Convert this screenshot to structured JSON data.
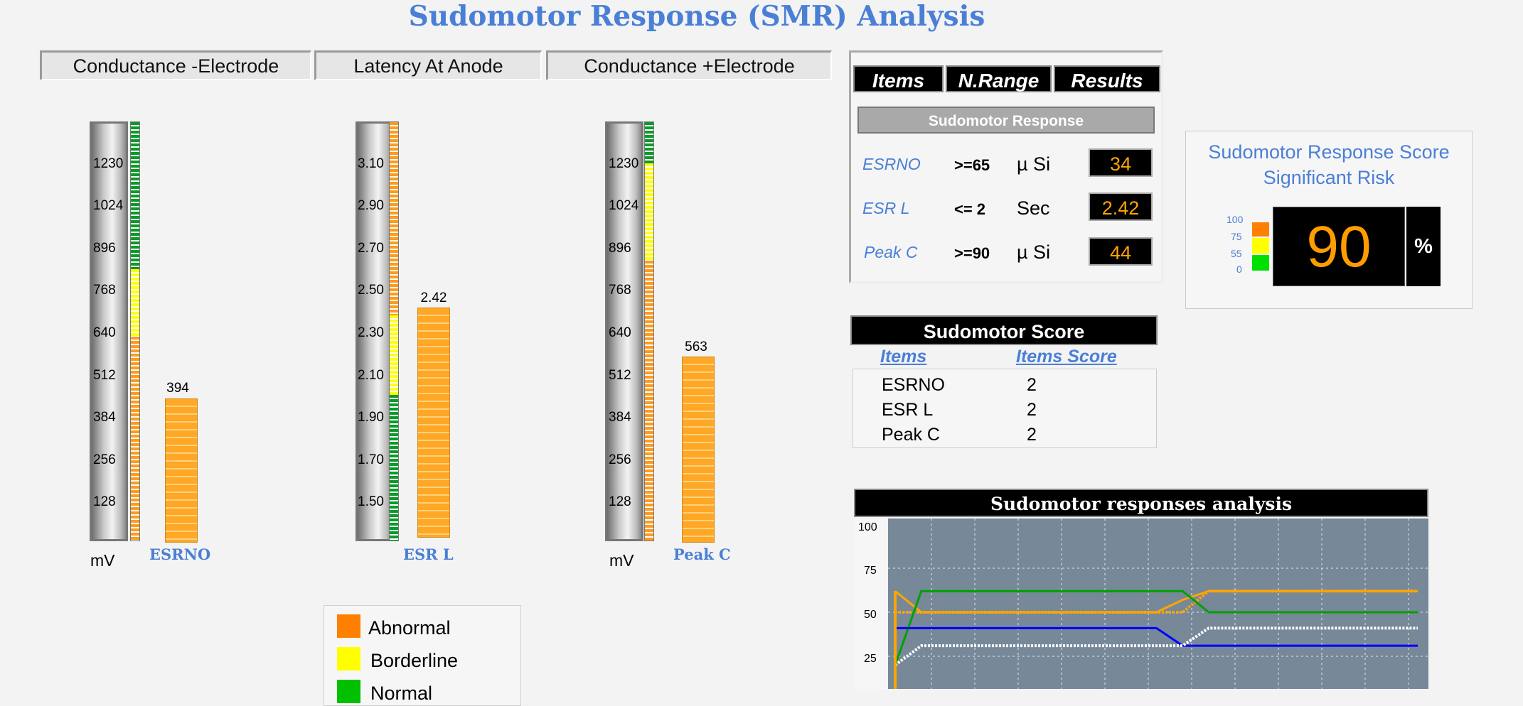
{
  "title": "Sudomotor Response (SMR) Analysis",
  "columns": [
    {
      "label": "Conductance -Electrode"
    },
    {
      "label": "Latency At Anode"
    },
    {
      "label": "Conductance +Electrode"
    }
  ],
  "gauges": [
    {
      "ticks": [
        "1230",
        "1024",
        "896",
        "768",
        "640",
        "512",
        "384",
        "256",
        "128"
      ],
      "value_label": "394",
      "value": 394,
      "unit": "mV",
      "name": "ESRNO"
    },
    {
      "ticks": [
        "3.10",
        "2.90",
        "2.70",
        "2.50",
        "2.30",
        "2.10",
        "1.90",
        "1.70",
        "1.50"
      ],
      "value_label": "2.42",
      "value": 2.42,
      "unit": "",
      "name": "ESR L"
    },
    {
      "ticks": [
        "1230",
        "1024",
        "896",
        "768",
        "640",
        "512",
        "384",
        "256",
        "128"
      ],
      "value_label": "563",
      "value": 563,
      "unit": "mV",
      "name": "Peak C"
    }
  ],
  "legend": [
    {
      "label": "Abnormal",
      "color": "#ff8000"
    },
    {
      "label": "Borderline",
      "color": "#ffff00"
    },
    {
      "label": "Normal",
      "color": "#00c000"
    }
  ],
  "results_panel": {
    "headers": [
      "Items",
      "N.Range",
      "Results"
    ],
    "section": "Sudomotor Response",
    "rows": [
      {
        "name": "ESRNO",
        "range": ">=65",
        "unit": "µ Si",
        "result": "34"
      },
      {
        "name": "ESR L",
        "range": "<= 2",
        "unit": "Sec",
        "result": "2.42"
      },
      {
        "name": "Peak C",
        "range": ">=90",
        "unit": "µ Si",
        "result": "44"
      }
    ]
  },
  "score_panel": {
    "title_line1": "Sudomotor Response Score",
    "title_line2": "Significant Risk",
    "scale": [
      "100",
      "75",
      "55",
      "0"
    ],
    "score": "90",
    "unit": "%"
  },
  "sudomotor_score": {
    "title": "Sudomotor Score",
    "col_items": "Items",
    "col_score": "Items Score",
    "rows": [
      {
        "item": "ESRNO",
        "score": "2"
      },
      {
        "item": "ESR L",
        "score": "2"
      },
      {
        "item": "Peak C",
        "score": "2"
      }
    ]
  },
  "chart": {
    "title": "Sudomotor responses analysis",
    "y_ticks": [
      "100",
      "75",
      "50",
      "25"
    ]
  },
  "chart_data": {
    "type": "line",
    "title": "Sudomotor responses analysis",
    "xlabel": "",
    "ylabel": "",
    "ylim": [
      0,
      100
    ],
    "grid": true,
    "series": [
      {
        "color": "#ffa500",
        "x": [
          0,
          1,
          2,
          3,
          4,
          5,
          6,
          7,
          8,
          9,
          10,
          11,
          12,
          13,
          14,
          15,
          16,
          17,
          18,
          19,
          20
        ],
        "values": [
          62,
          50,
          50,
          50,
          50,
          50,
          50,
          50,
          50,
          50,
          50,
          57,
          62,
          62,
          62,
          62,
          62,
          62,
          62,
          62,
          62
        ]
      },
      {
        "color": "#ffa500",
        "style": "dotted",
        "x": [
          0,
          1,
          2,
          3,
          4,
          5,
          6,
          7,
          8,
          9,
          10,
          11,
          12,
          13,
          14,
          15,
          16,
          17,
          18,
          19,
          20
        ],
        "values": [
          50,
          50,
          50,
          50,
          50,
          50,
          50,
          50,
          50,
          50,
          50,
          50,
          62,
          62,
          62,
          62,
          62,
          62,
          62,
          62,
          62
        ]
      },
      {
        "color": "#00a000",
        "x": [
          0,
          1,
          2,
          3,
          4,
          5,
          6,
          7,
          8,
          9,
          10,
          11,
          12,
          13,
          14,
          15,
          16,
          17,
          18,
          19,
          20
        ],
        "values": [
          20,
          62,
          62,
          62,
          62,
          62,
          62,
          62,
          62,
          62,
          62,
          62,
          50,
          50,
          50,
          50,
          50,
          50,
          50,
          50,
          50
        ]
      },
      {
        "color": "#0000ff",
        "x": [
          0,
          1,
          2,
          3,
          4,
          5,
          6,
          7,
          8,
          9,
          10,
          11,
          12,
          13,
          14,
          15,
          16,
          17,
          18,
          19,
          20
        ],
        "values": [
          41,
          41,
          41,
          41,
          41,
          41,
          41,
          41,
          41,
          41,
          41,
          31,
          31,
          31,
          31,
          31,
          31,
          31,
          31,
          31,
          31
        ]
      },
      {
        "color": "#ffffff",
        "style": "dotted",
        "x": [
          0,
          1,
          2,
          3,
          4,
          5,
          6,
          7,
          8,
          9,
          10,
          11,
          12,
          13,
          14,
          15,
          16,
          17,
          18,
          19,
          20
        ],
        "values": [
          20,
          31,
          31,
          31,
          31,
          31,
          31,
          31,
          31,
          31,
          31,
          31,
          41,
          41,
          41,
          41,
          41,
          41,
          41,
          41,
          41
        ]
      }
    ]
  }
}
